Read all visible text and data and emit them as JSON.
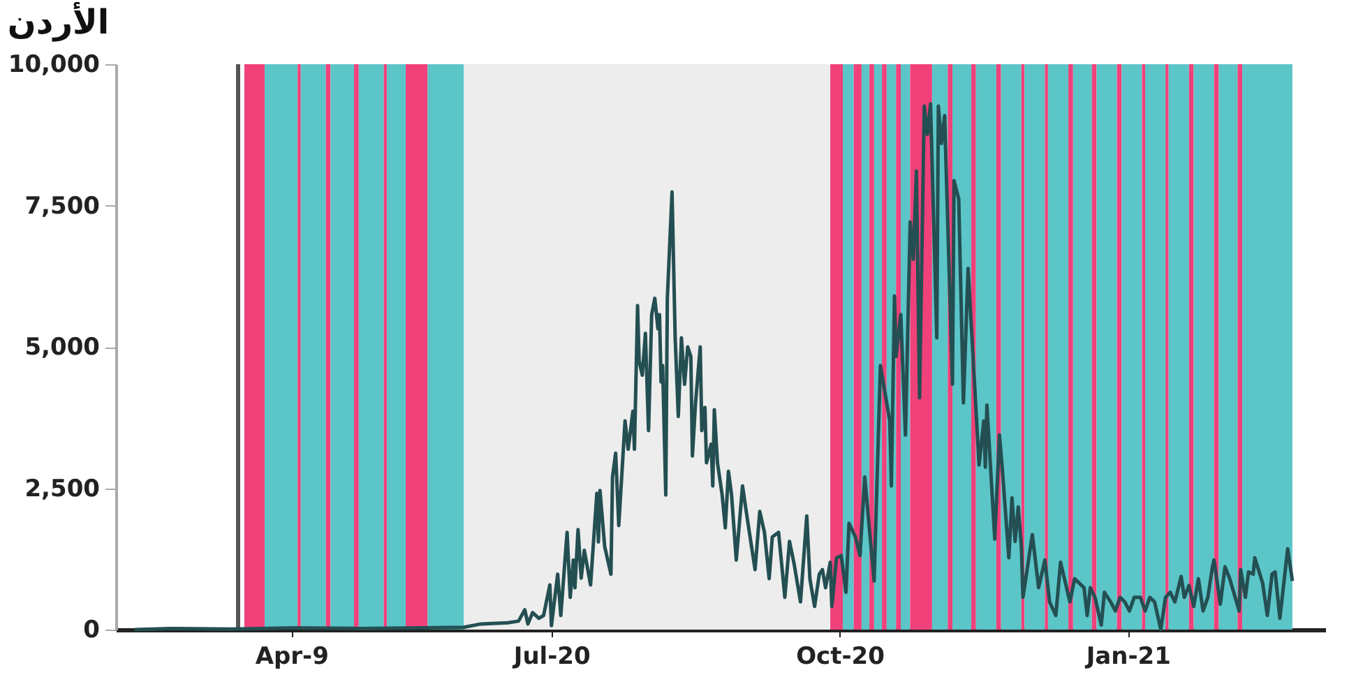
{
  "chart_data": {
    "type": "line",
    "title": "الأردن",
    "xlim": [
      "2020-02-13",
      "2021-03-05"
    ],
    "ylim": [
      0,
      10000
    ],
    "xticks": [
      {
        "value": "2020-04-09",
        "label": "Apr-9"
      },
      {
        "value": "2020-07-01",
        "label": "Jul-20"
      },
      {
        "value": "2020-10-01",
        "label": "Oct-20"
      },
      {
        "value": "2021-01-01",
        "label": "Jan-21"
      }
    ],
    "yticks": [
      {
        "value": 0,
        "label": "0"
      },
      {
        "value": 2500,
        "label": "2,500"
      },
      {
        "value": 5000,
        "label": "5,000"
      },
      {
        "value": 7500,
        "label": "7,500"
      },
      {
        "value": 10000,
        "label": "10,000"
      }
    ],
    "grid": false,
    "legend": false,
    "marker": "none",
    "line_style": "solid",
    "series": [
      {
        "color": "#244f52",
        "x": [
          "2020-02-19T00:00",
          "2020-03-01T00:00",
          "2020-03-21T00:00",
          "2020-04-10T00:00",
          "2020-04-30T00:00",
          "2020-05-20T00:00",
          "2020-06-03T00:00",
          "2020-06-08T12:00",
          "2020-06-17T00:00",
          "2020-06-20T12:00",
          "2020-06-22T12:00",
          "2020-06-23T12:00",
          "2020-06-25T00:00",
          "2020-06-27T00:00",
          "2020-06-28T12:00",
          "2020-06-30T12:00",
          "2020-07-01T00:00",
          "2020-07-03T00:00",
          "2020-07-04T00:00",
          "2020-07-06T00:00",
          "2020-07-07T00:00",
          "2020-07-08T00:00",
          "2020-07-08T12:00",
          "2020-07-09T12:00",
          "2020-07-10T12:00",
          "2020-07-11T12:00",
          "2020-07-13T12:00",
          "2020-07-15T12:00",
          "2020-07-16T00:00",
          "2020-07-16T12:00",
          "2020-07-18T00:00",
          "2020-07-20T00:00",
          "2020-07-20T12:00",
          "2020-07-21T12:00",
          "2020-07-22T12:00",
          "2020-07-24T12:00",
          "2020-07-25T12:00",
          "2020-07-27T00:00",
          "2020-07-27T12:00",
          "2020-07-28T12:00",
          "2020-07-29T00:00",
          "2020-07-30T00:00",
          "2020-07-31T00:00",
          "2020-08-01T00:00",
          "2020-08-02T00:00",
          "2020-08-03T00:00",
          "2020-08-04T00:00",
          "2020-08-04T12:00",
          "2020-08-05T00:00",
          "2020-08-05T12:00",
          "2020-08-06T12:00",
          "2020-08-07T00:00",
          "2020-08-08T12:00",
          "2020-08-09T12:00",
          "2020-08-10T12:00",
          "2020-08-11T12:00",
          "2020-08-12T12:00",
          "2020-08-13T12:00",
          "2020-08-14T12:00",
          "2020-08-15T00:00",
          "2020-08-16T00:00",
          "2020-08-17T12:00",
          "2020-08-18T00:00",
          "2020-08-19T00:00",
          "2020-08-19T12:00",
          "2020-08-21T00:00",
          "2020-08-21T12:00",
          "2020-08-22T00:00",
          "2020-08-23T00:00",
          "2020-08-24T12:00",
          "2020-08-25T12:00",
          "2020-08-26T12:00",
          "2020-08-27T12:00",
          "2020-08-29T00:00",
          "2020-08-31T00:00",
          "2020-09-01T12:00",
          "2020-09-04T00:00",
          "2020-09-05T12:00",
          "2020-09-07T00:00",
          "2020-09-08T12:00",
          "2020-09-09T12:00",
          "2020-09-11T12:00",
          "2020-09-12T12:00",
          "2020-09-13T12:00",
          "2020-09-15T00:00",
          "2020-09-16T12:00",
          "2020-09-18T12:00",
          "2020-09-20T12:00",
          "2020-09-21T12:00",
          "2020-09-23T00:00",
          "2020-09-24T12:00",
          "2020-09-25T12:00",
          "2020-09-26T12:00",
          "2020-09-28T00:00",
          "2020-09-28T12:00",
          "2020-09-30T00:00",
          "2020-10-01T12:00",
          "2020-10-03T00:00",
          "2020-10-04T00:00",
          "2020-10-06T00:00",
          "2020-10-07T12:00",
          "2020-10-09T00:00",
          "2020-10-12T00:00",
          "2020-10-14T00:00",
          "2020-10-17T00:00",
          "2020-10-17T12:00",
          "2020-10-18T12:00",
          "2020-10-19T00:00",
          "2020-10-20T12:00",
          "2020-10-22T00:00",
          "2020-10-23T12:00",
          "2020-10-24T12:00",
          "2020-10-25T12:00",
          "2020-10-26T12:00",
          "2020-10-28T00:00",
          "2020-10-29T00:00",
          "2020-10-30T00:00",
          "2020-11-01T00:00",
          "2020-11-01T12:00",
          "2020-11-02T12:00",
          "2020-11-03T12:00",
          "2020-11-06T00:00",
          "2020-11-06T12:00",
          "2020-11-08T00:00",
          "2020-11-09T12:00",
          "2020-11-11T00:00",
          "2020-11-14T12:00",
          "2020-11-16T00:00",
          "2020-11-16T12:00",
          "2020-11-17T00:00",
          "2020-11-19T12:00",
          "2020-11-21T00:00",
          "2020-11-22T00:00",
          "2020-11-24T00:00",
          "2020-11-25T00:00",
          "2020-11-26T00:00",
          "2020-11-27T00:00",
          "2020-11-28T00:00",
          "2020-11-28T12:00",
          "2020-12-01T12:00",
          "2020-12-03T12:00",
          "2020-12-05T12:00",
          "2020-12-07T00:00",
          "2020-12-09T00:00",
          "2020-12-10T12:00",
          "2020-12-13T12:00",
          "2020-12-15T00:00",
          "2020-12-18T00:00",
          "2020-12-19T00:00",
          "2020-12-20T00:00",
          "2020-12-21T12:00",
          "2020-12-23T12:00",
          "2020-12-24T12:00",
          "2020-12-26T12:00",
          "2020-12-28T00:00",
          "2020-12-29T12:00",
          "2020-12-31T00:00",
          "2021-01-01T12:00",
          "2021-01-03T00:00",
          "2021-01-05T00:00",
          "2021-01-06T12:00",
          "2021-01-08T00:00",
          "2021-01-09T12:00",
          "2021-01-11T12:00",
          "2021-01-13T00:00",
          "2021-01-14T12:00",
          "2021-01-16T00:00",
          "2021-01-18T00:00",
          "2021-01-19T00:00",
          "2021-01-20T12:00",
          "2021-01-22T00:00",
          "2021-01-23T12:00",
          "2021-01-25T00:00",
          "2021-01-26T12:00",
          "2021-01-28T00:00",
          "2021-01-28T12:00",
          "2021-01-30T12:00",
          "2021-02-01T00:00",
          "2021-02-02T12:00",
          "2021-02-05T12:00",
          "2021-02-06T00:00",
          "2021-02-07T12:00",
          "2021-02-08T12:00",
          "2021-02-10T00:00",
          "2021-02-10T12:00",
          "2021-02-13T00:00",
          "2021-02-14T12:00",
          "2021-02-16T00:00",
          "2021-02-17T00:00",
          "2021-02-18T12:00",
          "2021-02-21T00:00",
          "2021-02-22T12:00"
        ],
        "values": [
          0,
          20,
          10,
          30,
          20,
          30,
          40,
          100,
          120,
          150,
          350,
          100,
          300,
          200,
          250,
          790,
          70,
          980,
          250,
          1720,
          570,
          1230,
          740,
          1770,
          910,
          1400,
          790,
          2410,
          1550,
          2460,
          1470,
          980,
          2700,
          3120,
          1840,
          3690,
          3190,
          3860,
          3190,
          5730,
          4750,
          4500,
          5240,
          3520,
          5570,
          5860,
          5320,
          5570,
          4380,
          4670,
          2380,
          5860,
          7740,
          5160,
          3770,
          5160,
          4340,
          5000,
          4830,
          3070,
          4010,
          5000,
          3520,
          3930,
          2950,
          3280,
          2540,
          3890,
          2950,
          2380,
          1800,
          2800,
          2380,
          1230,
          2540,
          1970,
          1060,
          2090,
          1720,
          900,
          1640,
          1720,
          1150,
          570,
          1560,
          1150,
          490,
          2010,
          900,
          410,
          980,
          1060,
          740,
          1190,
          410,
          1270,
          1310,
          660,
          1880,
          1640,
          1310,
          2700,
          860,
          4670,
          3690,
          2540,
          5900,
          4830,
          5570,
          3440,
          7210,
          6550,
          8110,
          4100,
          9260,
          8760,
          9300,
          5160,
          9260,
          8600,
          9090,
          4340,
          7940,
          7620,
          4010,
          6390,
          2910,
          3690,
          2870,
          3970,
          1600,
          3440,
          2780,
          1270,
          2330,
          1560,
          2170,
          1470,
          570,
          1680,
          740,
          1230,
          490,
          250,
          1190,
          490,
          900,
          740,
          250,
          740,
          570,
          80,
          660,
          490,
          330,
          570,
          490,
          330,
          570,
          570,
          330,
          570,
          490,
          0,
          570,
          660,
          490,
          940,
          570,
          780,
          410,
          900,
          330,
          570,
          1110,
          1230,
          450,
          1110,
          900,
          330,
          1060,
          570,
          1020,
          980,
          1270,
          820,
          250,
          980,
          1020,
          200,
          1430,
          860
        ]
      }
    ],
    "ref_lines": [
      {
        "axis": "x",
        "value": "2020-03-23",
        "color": "#555555"
      }
    ],
    "bands": [
      {
        "axis": "x",
        "from": "2020-06-03T00:00",
        "to": "2020-09-28T00:00",
        "color": "#ededed"
      },
      {
        "axis": "x",
        "from": "2020-03-25T00:00",
        "to": "2020-03-31T12:00",
        "color": "#f0417a"
      },
      {
        "axis": "x",
        "from": "2020-03-31T12:00",
        "to": "2020-04-11T00:00",
        "color": "#5bc5c8"
      },
      {
        "axis": "x",
        "from": "2020-04-11T00:00",
        "to": "2020-04-12T00:00",
        "color": "#f0417a"
      },
      {
        "axis": "x",
        "from": "2020-04-12T00:00",
        "to": "2020-04-20T00:00",
        "color": "#5bc5c8"
      },
      {
        "axis": "x",
        "from": "2020-04-20T00:00",
        "to": "2020-04-21T12:00",
        "color": "#f0417a"
      },
      {
        "axis": "x",
        "from": "2020-04-21T12:00",
        "to": "2020-04-29T00:00",
        "color": "#5bc5c8"
      },
      {
        "axis": "x",
        "from": "2020-04-29T00:00",
        "to": "2020-04-30T12:00",
        "color": "#f0417a"
      },
      {
        "axis": "x",
        "from": "2020-04-30T12:00",
        "to": "2020-05-08T12:00",
        "color": "#5bc5c8"
      },
      {
        "axis": "x",
        "from": "2020-05-08T12:00",
        "to": "2020-05-09T12:00",
        "color": "#f0417a"
      },
      {
        "axis": "x",
        "from": "2020-05-09T12:00",
        "to": "2020-05-15T12:00",
        "color": "#5bc5c8"
      },
      {
        "axis": "x",
        "from": "2020-05-15T12:00",
        "to": "2020-05-22T12:00",
        "color": "#f0417a"
      },
      {
        "axis": "x",
        "from": "2020-05-22T12:00",
        "to": "2020-06-03T00:00",
        "color": "#5bc5c8"
      },
      {
        "axis": "x",
        "from": "2020-09-28T00:00",
        "to": "2020-10-02T00:00",
        "color": "#f0417a"
      },
      {
        "axis": "x",
        "from": "2020-10-02T00:00",
        "to": "2020-10-05T12:00",
        "color": "#5bc5c8"
      },
      {
        "axis": "x",
        "from": "2020-10-05T12:00",
        "to": "2020-10-08T00:00",
        "color": "#f0417a"
      },
      {
        "axis": "x",
        "from": "2020-10-08T00:00",
        "to": "2020-10-10T12:00",
        "color": "#5bc5c8"
      },
      {
        "axis": "x",
        "from": "2020-10-10T12:00",
        "to": "2020-10-12T00:00",
        "color": "#f0417a"
      },
      {
        "axis": "x",
        "from": "2020-10-12T00:00",
        "to": "2020-10-14T12:00",
        "color": "#5bc5c8"
      },
      {
        "axis": "x",
        "from": "2020-10-14T12:00",
        "to": "2020-10-16T00:00",
        "color": "#f0417a"
      },
      {
        "axis": "x",
        "from": "2020-10-16T00:00",
        "to": "2020-10-19T00:00",
        "color": "#5bc5c8"
      },
      {
        "axis": "x",
        "from": "2020-10-19T00:00",
        "to": "2020-10-20T12:00",
        "color": "#f0417a"
      },
      {
        "axis": "x",
        "from": "2020-10-20T12:00",
        "to": "2020-10-23T12:00",
        "color": "#5bc5c8"
      },
      {
        "axis": "x",
        "from": "2020-10-23T12:00",
        "to": "2020-10-30T12:00",
        "color": "#f0417a"
      },
      {
        "axis": "x",
        "from": "2020-10-30T12:00",
        "to": "2020-11-04T12:00",
        "color": "#5bc5c8"
      },
      {
        "axis": "x",
        "from": "2020-11-04T12:00",
        "to": "2020-11-06T00:00",
        "color": "#f0417a"
      },
      {
        "axis": "x",
        "from": "2020-11-06T00:00",
        "to": "2020-11-12T00:00",
        "color": "#5bc5c8"
      },
      {
        "axis": "x",
        "from": "2020-11-12T00:00",
        "to": "2020-11-13T12:00",
        "color": "#f0417a"
      },
      {
        "axis": "x",
        "from": "2020-11-13T12:00",
        "to": "2020-11-20T00:00",
        "color": "#5bc5c8"
      },
      {
        "axis": "x",
        "from": "2020-11-20T00:00",
        "to": "2020-11-21T12:00",
        "color": "#f0417a"
      },
      {
        "axis": "x",
        "from": "2020-11-21T12:00",
        "to": "2020-11-28T00:00",
        "color": "#5bc5c8"
      },
      {
        "axis": "x",
        "from": "2020-11-28T00:00",
        "to": "2020-11-29T00:00",
        "color": "#f0417a"
      },
      {
        "axis": "x",
        "from": "2020-11-29T00:00",
        "to": "2020-12-05T12:00",
        "color": "#5bc5c8"
      },
      {
        "axis": "x",
        "from": "2020-12-05T12:00",
        "to": "2020-12-06T12:00",
        "color": "#f0417a"
      },
      {
        "axis": "x",
        "from": "2020-12-06T12:00",
        "to": "2020-12-13T00:00",
        "color": "#5bc5c8"
      },
      {
        "axis": "x",
        "from": "2020-12-13T00:00",
        "to": "2020-12-14T12:00",
        "color": "#f0417a"
      },
      {
        "axis": "x",
        "from": "2020-12-14T12:00",
        "to": "2020-12-20T12:00",
        "color": "#5bc5c8"
      },
      {
        "axis": "x",
        "from": "2020-12-20T12:00",
        "to": "2020-12-22T00:00",
        "color": "#f0417a"
      },
      {
        "axis": "x",
        "from": "2020-12-22T00:00",
        "to": "2020-12-28T12:00",
        "color": "#5bc5c8"
      },
      {
        "axis": "x",
        "from": "2020-12-28T12:00",
        "to": "2020-12-30T00:00",
        "color": "#f0417a"
      },
      {
        "axis": "x",
        "from": "2020-12-30T00:00",
        "to": "2021-01-05T12:00",
        "color": "#5bc5c8"
      },
      {
        "axis": "x",
        "from": "2021-01-05T12:00",
        "to": "2021-01-06T12:00",
        "color": "#f0417a"
      },
      {
        "axis": "x",
        "from": "2021-01-06T12:00",
        "to": "2021-01-13T00:00",
        "color": "#5bc5c8"
      },
      {
        "axis": "x",
        "from": "2021-01-13T00:00",
        "to": "2021-01-14T00:00",
        "color": "#f0417a"
      },
      {
        "axis": "x",
        "from": "2021-01-14T00:00",
        "to": "2021-01-20T12:00",
        "color": "#5bc5c8"
      },
      {
        "axis": "x",
        "from": "2021-01-20T12:00",
        "to": "2021-01-22T00:00",
        "color": "#f0417a"
      },
      {
        "axis": "x",
        "from": "2021-01-22T00:00",
        "to": "2021-01-28T12:00",
        "color": "#5bc5c8"
      },
      {
        "axis": "x",
        "from": "2021-01-28T12:00",
        "to": "2021-01-30T00:00",
        "color": "#f0417a"
      },
      {
        "axis": "x",
        "from": "2021-01-30T00:00",
        "to": "2021-02-05T00:00",
        "color": "#5bc5c8"
      },
      {
        "axis": "x",
        "from": "2021-02-05T00:00",
        "to": "2021-02-06T12:00",
        "color": "#f0417a"
      },
      {
        "axis": "x",
        "from": "2021-02-06T12:00",
        "to": "2021-02-22T12:00",
        "color": "#5bc5c8"
      }
    ]
  }
}
